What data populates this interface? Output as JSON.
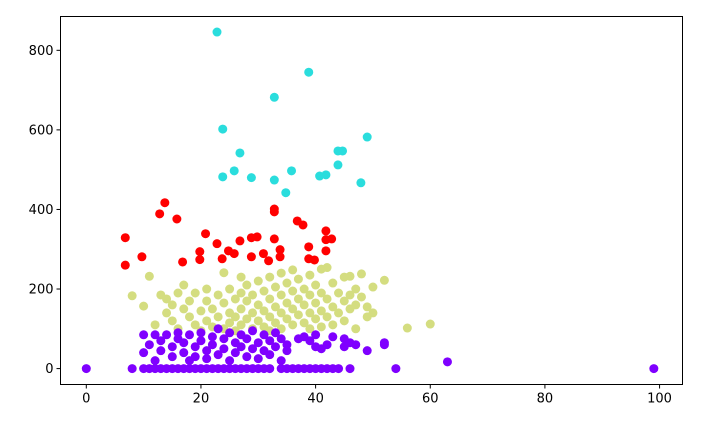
{
  "chart_data": {
    "type": "scatter",
    "title": "",
    "xlabel": "",
    "ylabel": "",
    "xlim": [
      -4.5,
      104
    ],
    "ylim": [
      -40,
      885
    ],
    "grid": false,
    "x_ticks": [
      "0",
      "20",
      "40",
      "60",
      "80",
      "100"
    ],
    "y_ticks": [
      "0",
      "200",
      "400",
      "600",
      "800"
    ],
    "x_tick_values": [
      0,
      20,
      40,
      60,
      80,
      100
    ],
    "y_tick_values": [
      0,
      200,
      400,
      600,
      800
    ],
    "series": [
      {
        "color": "#2adddd",
        "points": [
          [
            22.8,
            846
          ],
          [
            38.8,
            745
          ],
          [
            32.8,
            682
          ],
          [
            23.8,
            602
          ],
          [
            26.8,
            542
          ],
          [
            25.8,
            497
          ],
          [
            23.8,
            482
          ],
          [
            28.8,
            480
          ],
          [
            32.8,
            474
          ],
          [
            35.8,
            497
          ],
          [
            34.8,
            442
          ],
          [
            40.7,
            484
          ],
          [
            41.8,
            487
          ],
          [
            43.9,
            512
          ],
          [
            43.9,
            547
          ],
          [
            44.7,
            547
          ],
          [
            49,
            582
          ],
          [
            47.9,
            467
          ]
        ]
      },
      {
        "color": "#ff0000",
        "points": [
          [
            6.8,
            329
          ],
          [
            6.8,
            260
          ],
          [
            9.7,
            281
          ],
          [
            12.8,
            389
          ],
          [
            13.7,
            417
          ],
          [
            15.8,
            376
          ],
          [
            16.8,
            268
          ],
          [
            20.8,
            339
          ],
          [
            19.8,
            294
          ],
          [
            19.8,
            274
          ],
          [
            22.8,
            314
          ],
          [
            24.8,
            296
          ],
          [
            23.7,
            276
          ],
          [
            25.8,
            289
          ],
          [
            26.8,
            321
          ],
          [
            28.8,
            329
          ],
          [
            29.8,
            331
          ],
          [
            28.8,
            281
          ],
          [
            30.9,
            289
          ],
          [
            31.8,
            271
          ],
          [
            32.8,
            401
          ],
          [
            32.8,
            394
          ],
          [
            32.8,
            326
          ],
          [
            33.8,
            299
          ],
          [
            33.8,
            281
          ],
          [
            36.8,
            371
          ],
          [
            37.8,
            361
          ],
          [
            38.8,
            306
          ],
          [
            38.8,
            276
          ],
          [
            39.8,
            273
          ],
          [
            41.8,
            346
          ],
          [
            41.8,
            324
          ],
          [
            42.8,
            326
          ],
          [
            41.8,
            296
          ]
        ]
      },
      {
        "color": "#d4dd80",
        "points": [
          [
            8,
            183
          ],
          [
            11,
            232
          ],
          [
            10,
            157
          ],
          [
            12,
            110
          ],
          [
            13,
            185
          ],
          [
            14,
            175
          ],
          [
            14,
            140
          ],
          [
            15,
            160
          ],
          [
            15,
            120
          ],
          [
            16,
            190
          ],
          [
            16,
            100
          ],
          [
            17,
            210
          ],
          [
            17,
            150
          ],
          [
            18,
            130
          ],
          [
            18,
            170
          ],
          [
            19,
            110
          ],
          [
            19,
            190
          ],
          [
            20,
            145
          ],
          [
            20,
            95
          ],
          [
            21,
            200
          ],
          [
            21,
            170
          ],
          [
            21,
            120
          ],
          [
            22,
            150
          ],
          [
            22,
            105
          ],
          [
            23,
            185
          ],
          [
            23,
            130
          ],
          [
            24,
            241
          ],
          [
            24,
            165
          ],
          [
            24,
            100
          ],
          [
            25,
            140
          ],
          [
            25,
            200
          ],
          [
            25,
            115
          ],
          [
            26,
            175
          ],
          [
            26,
            130
          ],
          [
            26,
            95
          ],
          [
            27,
            230
          ],
          [
            27,
            190
          ],
          [
            27,
            150
          ],
          [
            27,
            110
          ],
          [
            28,
            210
          ],
          [
            28,
            170
          ],
          [
            28,
            125
          ],
          [
            29,
            185
          ],
          [
            29,
            140
          ],
          [
            29,
            100
          ],
          [
            30,
            220
          ],
          [
            30,
            160
          ],
          [
            30,
            120
          ],
          [
            31,
            195
          ],
          [
            31,
            145
          ],
          [
            31,
            105
          ],
          [
            32,
            230
          ],
          [
            32,
            175
          ],
          [
            32,
            130
          ],
          [
            32,
            95
          ],
          [
            33,
            205
          ],
          [
            33,
            155
          ],
          [
            33,
            115
          ],
          [
            34,
            240
          ],
          [
            34,
            185
          ],
          [
            34,
            140
          ],
          [
            34,
            100
          ],
          [
            35,
            215
          ],
          [
            35,
            165
          ],
          [
            35,
            125
          ],
          [
            36,
            248
          ],
          [
            36,
            195
          ],
          [
            36,
            150
          ],
          [
            36,
            110
          ],
          [
            37,
            225
          ],
          [
            37,
            175
          ],
          [
            37,
            135
          ],
          [
            38,
            200
          ],
          [
            38,
            160
          ],
          [
            38,
            115
          ],
          [
            39,
            235
          ],
          [
            39,
            185
          ],
          [
            39,
            140
          ],
          [
            39,
            100
          ],
          [
            40,
            210
          ],
          [
            40,
            165
          ],
          [
            40,
            125
          ],
          [
            41,
            250
          ],
          [
            41,
            190
          ],
          [
            41,
            145
          ],
          [
            41,
            105
          ],
          [
            42,
            254
          ],
          [
            42,
            175
          ],
          [
            42,
            130
          ],
          [
            43,
            215
          ],
          [
            43,
            155
          ],
          [
            43,
            110
          ],
          [
            44,
            190
          ],
          [
            44,
            140
          ],
          [
            45,
            230
          ],
          [
            45,
            170
          ],
          [
            45,
            120
          ],
          [
            46,
            232
          ],
          [
            46,
            185
          ],
          [
            46,
            150
          ],
          [
            47,
            200
          ],
          [
            47,
            160
          ],
          [
            47,
            100
          ],
          [
            48,
            238
          ],
          [
            48,
            180
          ],
          [
            49,
            155
          ],
          [
            49,
            130
          ],
          [
            50,
            205
          ],
          [
            50,
            140
          ],
          [
            52,
            222
          ],
          [
            56,
            102
          ],
          [
            60,
            112
          ]
        ]
      },
      {
        "color": "#7f00ff",
        "points": [
          [
            0,
            0
          ],
          [
            8,
            0
          ],
          [
            10,
            0
          ],
          [
            11,
            0
          ],
          [
            12,
            0
          ],
          [
            13,
            0
          ],
          [
            14,
            0
          ],
          [
            15,
            0
          ],
          [
            16,
            0
          ],
          [
            17,
            0
          ],
          [
            18,
            0
          ],
          [
            19,
            0
          ],
          [
            20,
            0
          ],
          [
            21,
            0
          ],
          [
            22,
            0
          ],
          [
            23,
            0
          ],
          [
            24,
            0
          ],
          [
            25,
            0
          ],
          [
            26,
            0
          ],
          [
            27,
            0
          ],
          [
            28,
            0
          ],
          [
            29,
            0
          ],
          [
            30,
            0
          ],
          [
            31,
            0
          ],
          [
            32,
            0
          ],
          [
            34,
            0
          ],
          [
            35,
            0
          ],
          [
            36,
            0
          ],
          [
            37,
            0
          ],
          [
            38,
            0
          ],
          [
            39,
            0
          ],
          [
            40,
            0
          ],
          [
            41,
            0
          ],
          [
            42,
            0
          ],
          [
            43,
            0
          ],
          [
            44,
            0
          ],
          [
            46,
            0
          ],
          [
            54,
            0
          ],
          [
            99,
            0
          ],
          [
            10,
            85
          ],
          [
            10,
            40
          ],
          [
            11,
            60
          ],
          [
            12,
            85
          ],
          [
            12,
            20
          ],
          [
            13,
            70
          ],
          [
            13,
            45
          ],
          [
            14,
            85
          ],
          [
            15,
            55
          ],
          [
            15,
            30
          ],
          [
            16,
            75
          ],
          [
            16,
            90
          ],
          [
            17,
            40
          ],
          [
            17,
            65
          ],
          [
            18,
            85
          ],
          [
            18,
            20
          ],
          [
            19,
            55
          ],
          [
            19,
            30
          ],
          [
            20,
            90
          ],
          [
            20,
            70
          ],
          [
            21,
            45
          ],
          [
            21,
            25
          ],
          [
            22,
            80
          ],
          [
            22,
            60
          ],
          [
            23,
            35
          ],
          [
            23,
            100
          ],
          [
            24,
            75
          ],
          [
            24,
            50
          ],
          [
            25,
            90
          ],
          [
            25,
            20
          ],
          [
            26,
            65
          ],
          [
            26,
            40
          ],
          [
            27,
            85
          ],
          [
            27,
            55
          ],
          [
            28,
            30
          ],
          [
            28,
            75
          ],
          [
            29,
            95
          ],
          [
            29,
            50
          ],
          [
            30,
            65
          ],
          [
            30,
            25
          ],
          [
            31,
            85
          ],
          [
            31,
            45
          ],
          [
            32,
            70
          ],
          [
            32,
            35
          ],
          [
            33,
            55
          ],
          [
            33,
            90
          ],
          [
            34,
            20
          ],
          [
            34,
            75
          ],
          [
            35,
            45
          ],
          [
            35,
            60
          ],
          [
            37,
            75
          ],
          [
            38,
            80
          ],
          [
            39,
            70
          ],
          [
            40,
            55
          ],
          [
            40,
            85
          ],
          [
            41,
            50
          ],
          [
            42,
            60
          ],
          [
            43,
            80
          ],
          [
            45,
            75
          ],
          [
            45,
            55
          ],
          [
            46,
            65
          ],
          [
            47,
            60
          ],
          [
            49,
            45
          ],
          [
            52,
            60
          ],
          [
            52,
            65
          ],
          [
            63,
            17
          ]
        ]
      }
    ]
  }
}
